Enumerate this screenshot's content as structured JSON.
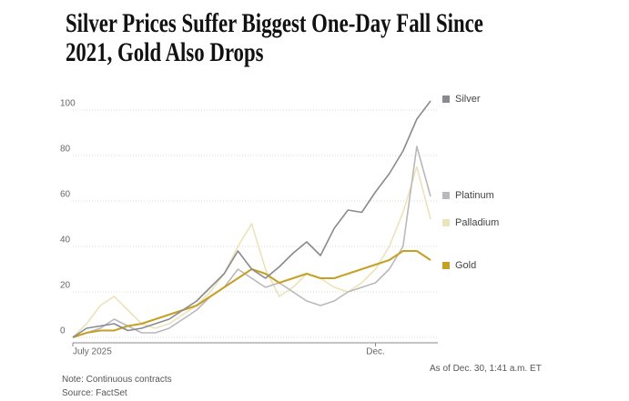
{
  "chart_data": {
    "type": "line",
    "title": "Silver Prices Suffer Biggest One-Day Fall Since 2021, Gold Also Drops",
    "categories": [
      "July 2025",
      null,
      null,
      null,
      null,
      null,
      null,
      null,
      null,
      null,
      null,
      null,
      null,
      null,
      null,
      null,
      null,
      null,
      null,
      null,
      null,
      null,
      "Dec.",
      null,
      null,
      null,
      null
    ],
    "series": [
      {
        "name": "Silver",
        "color": "#8a8a8f",
        "values": [
          0,
          4,
          5,
          6,
          3,
          4,
          6,
          8,
          12,
          16,
          22,
          28,
          38,
          30,
          26,
          31,
          37,
          42,
          36,
          48,
          56,
          55,
          64,
          72,
          82,
          96,
          104
        ]
      },
      {
        "name": "Platinum",
        "color": "#b9b9bd",
        "values": [
          0,
          2,
          4,
          8,
          5,
          2,
          2,
          4,
          8,
          12,
          18,
          22,
          30,
          26,
          22,
          24,
          20,
          16,
          14,
          16,
          20,
          22,
          24,
          30,
          40,
          84,
          62
        ]
      },
      {
        "name": "Palladium",
        "color": "#ece3ba",
        "values": [
          0,
          6,
          14,
          18,
          12,
          6,
          4,
          6,
          10,
          14,
          20,
          28,
          40,
          50,
          30,
          18,
          22,
          28,
          26,
          22,
          20,
          24,
          30,
          40,
          55,
          75,
          52
        ]
      },
      {
        "name": "Gold",
        "color": "#c6a024",
        "values": [
          0,
          2,
          3,
          3,
          5,
          6,
          8,
          10,
          12,
          14,
          18,
          22,
          26,
          30,
          28,
          24,
          26,
          28,
          26,
          26,
          28,
          30,
          32,
          34,
          38,
          38,
          34
        ]
      }
    ],
    "ylim": [
      -4,
      118
    ],
    "yticks": [
      0,
      20,
      40,
      60,
      80,
      100
    ],
    "grid": true,
    "note": "Note: Continuous contracts",
    "source": "Source: FactSet",
    "timestamp": "As of Dec. 30, 1:41 a.m. ET"
  }
}
